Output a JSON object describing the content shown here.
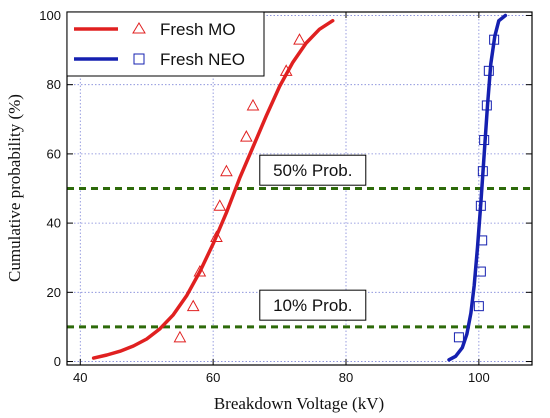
{
  "chart_data": {
    "type": "scatter",
    "xlabel": "Breakdown Voltage (kV)",
    "ylabel": "Cumulative probability (%)",
    "xlim": [
      38,
      108
    ],
    "ylim": [
      -1,
      101
    ],
    "xticks": [
      40,
      60,
      80,
      100
    ],
    "yticks": [
      0,
      20,
      40,
      60,
      80,
      100
    ],
    "grid": true,
    "legend_position": "top-left",
    "series": [
      {
        "name": "Fresh MO",
        "color": "#e02020",
        "marker": "triangle",
        "points": [
          {
            "x": 55.0,
            "y": 7
          },
          {
            "x": 57.0,
            "y": 16
          },
          {
            "x": 58.0,
            "y": 26
          },
          {
            "x": 60.5,
            "y": 36
          },
          {
            "x": 61.0,
            "y": 45
          },
          {
            "x": 62.0,
            "y": 55
          },
          {
            "x": 65.0,
            "y": 65
          },
          {
            "x": 66.0,
            "y": 74
          },
          {
            "x": 71.0,
            "y": 84
          },
          {
            "x": 73.0,
            "y": 93
          }
        ],
        "fit": {
          "x": [
            42,
            44,
            46,
            48,
            50,
            52,
            54,
            56,
            58,
            60,
            62,
            64,
            66,
            68,
            70,
            72,
            74,
            76,
            78
          ],
          "y": [
            1,
            1.9,
            3,
            4.5,
            6.5,
            9.5,
            13.5,
            19,
            26,
            34,
            43,
            53,
            62,
            71,
            79.5,
            86.5,
            92,
            96,
            98.5
          ]
        }
      },
      {
        "name": "Fresh NEO",
        "color": "#1520b0",
        "marker": "square",
        "points": [
          {
            "x": 97.0,
            "y": 7
          },
          {
            "x": 100.0,
            "y": 16
          },
          {
            "x": 100.3,
            "y": 26
          },
          {
            "x": 100.5,
            "y": 35
          },
          {
            "x": 100.3,
            "y": 45
          },
          {
            "x": 100.6,
            "y": 55
          },
          {
            "x": 100.8,
            "y": 64
          },
          {
            "x": 101.2,
            "y": 74
          },
          {
            "x": 101.5,
            "y": 84
          },
          {
            "x": 102.3,
            "y": 93
          }
        ],
        "fit": {
          "x": [
            95.5,
            96.5,
            97.5,
            98.2,
            98.8,
            99.3,
            99.8,
            100.3,
            100.8,
            101.3,
            101.8,
            102.4,
            103.0,
            104.0
          ],
          "y": [
            0.5,
            1.5,
            4,
            8,
            14,
            22,
            33,
            46,
            60,
            74,
            86,
            94,
            98.5,
            100
          ]
        }
      }
    ],
    "reference_lines": [
      {
        "y": 50,
        "label": "50% Prob.",
        "label_x": 75,
        "label_y": 55,
        "color": "#2d6a0a"
      },
      {
        "y": 10,
        "label": "10% Prob.",
        "label_x": 75,
        "label_y": 16,
        "color": "#2d6a0a"
      }
    ]
  }
}
